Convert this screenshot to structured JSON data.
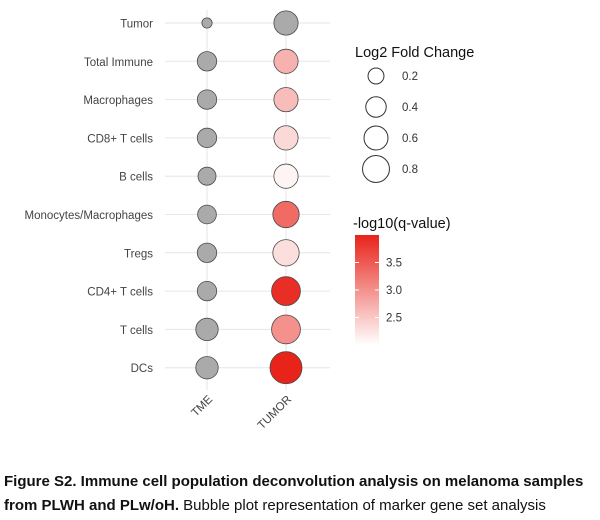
{
  "chart_data": {
    "type": "bubble",
    "x_categories": [
      "TME",
      "TUMOR"
    ],
    "y_categories": [
      "Tumor",
      "Total Immune",
      "Macrophages",
      "CD8+ T cells",
      "B cells",
      "Monocytes/Macrophages",
      "Tregs",
      "CD4+ T cells",
      "T cells",
      "DCs"
    ],
    "points": [
      {
        "row": "Tumor",
        "col": "TME",
        "log2fc": 0.02,
        "neglog10q": null
      },
      {
        "row": "Tumor",
        "col": "TUMOR",
        "log2fc": 0.37,
        "neglog10q": null
      },
      {
        "row": "Total Immune",
        "col": "TME",
        "log2fc": 0.2,
        "neglog10q": null
      },
      {
        "row": "Total Immune",
        "col": "TUMOR",
        "log2fc": 0.37,
        "neglog10q": 2.7
      },
      {
        "row": "Macrophages",
        "col": "TME",
        "log2fc": 0.2,
        "neglog10q": null
      },
      {
        "row": "Macrophages",
        "col": "TUMOR",
        "log2fc": 0.37,
        "neglog10q": 2.6
      },
      {
        "row": "CD8+ T cells",
        "col": "TME",
        "log2fc": 0.2,
        "neglog10q": null
      },
      {
        "row": "CD8+ T cells",
        "col": "TUMOR",
        "log2fc": 0.37,
        "neglog10q": 2.35
      },
      {
        "row": "B cells",
        "col": "TME",
        "log2fc": 0.16,
        "neglog10q": null
      },
      {
        "row": "B cells",
        "col": "TUMOR",
        "log2fc": 0.37,
        "neglog10q": 2.1
      },
      {
        "row": "Monocytes/Macrophages",
        "col": "TME",
        "log2fc": 0.18,
        "neglog10q": null
      },
      {
        "row": "Monocytes/Macrophages",
        "col": "TUMOR",
        "log2fc": 0.46,
        "neglog10q": 3.35
      },
      {
        "row": "Tregs",
        "col": "TME",
        "log2fc": 0.2,
        "neglog10q": null
      },
      {
        "row": "Tregs",
        "col": "TUMOR",
        "log2fc": 0.46,
        "neglog10q": 2.3
      },
      {
        "row": "CD4+ T cells",
        "col": "TME",
        "log2fc": 0.2,
        "neglog10q": null
      },
      {
        "row": "CD4+ T cells",
        "col": "TUMOR",
        "log2fc": 0.58,
        "neglog10q": 3.9
      },
      {
        "row": "T cells",
        "col": "TME",
        "log2fc": 0.3,
        "neglog10q": null
      },
      {
        "row": "T cells",
        "col": "TUMOR",
        "log2fc": 0.58,
        "neglog10q": 3.0
      },
      {
        "row": "DCs",
        "col": "TME",
        "log2fc": 0.3,
        "neglog10q": null
      },
      {
        "row": "DCs",
        "col": "TUMOR",
        "log2fc": 0.75,
        "neglog10q": 4.0
      }
    ],
    "size_legend": {
      "title": "Log2 Fold Change",
      "values": [
        0.2,
        0.4,
        0.6,
        0.8
      ],
      "labels": [
        "0.2",
        "0.4",
        "0.6",
        "0.8"
      ]
    },
    "color_legend": {
      "title": "-log10(q-value)",
      "range": [
        2.0,
        4.0
      ],
      "ticks": [
        3.5,
        3.0,
        2.5
      ],
      "tick_labels": [
        "3.5",
        "3.0",
        "2.5"
      ],
      "color_low": "#ffffff",
      "color_high": "#e8231a"
    },
    "na_color": "#aaaaaa",
    "grid": true
  },
  "caption": {
    "bold": "Figure S2. Immune cell population deconvolution analysis on melanoma samples from PLWH and PLw/oH.",
    "text": " Bubble plot representation of marker gene set analysis"
  }
}
